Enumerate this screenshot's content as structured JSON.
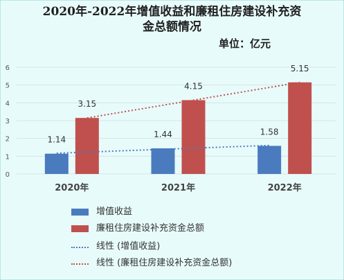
{
  "title_line1": "2020年-2022年增值收益和廉租住房建设补充资",
  "title_line2": "金总额情况",
  "unit_label": "单位：亿元",
  "chart_data": {
    "type": "bar",
    "categories": [
      "2020年",
      "2021年",
      "2022年"
    ],
    "series": [
      {
        "name": "增值收益",
        "values": [
          1.14,
          1.44,
          1.58
        ],
        "color": "#4a7bbf"
      },
      {
        "name": "廉租住房建设补充资金总额",
        "values": [
          3.15,
          4.15,
          5.15
        ],
        "color": "#c0504d"
      }
    ],
    "trendlines": [
      {
        "name": "线性 (增值收益)",
        "color": "#4a7bbf",
        "style": "dotted"
      },
      {
        "name": "线性 (廉租住房建设补充资金总额)",
        "color": "#c0504d",
        "style": "dotted"
      }
    ],
    "ylim": [
      0,
      6
    ],
    "yticks": [
      "0",
      "1",
      "2",
      "3",
      "4",
      "5",
      "6"
    ],
    "grid": true,
    "legend_position": "bottom"
  }
}
